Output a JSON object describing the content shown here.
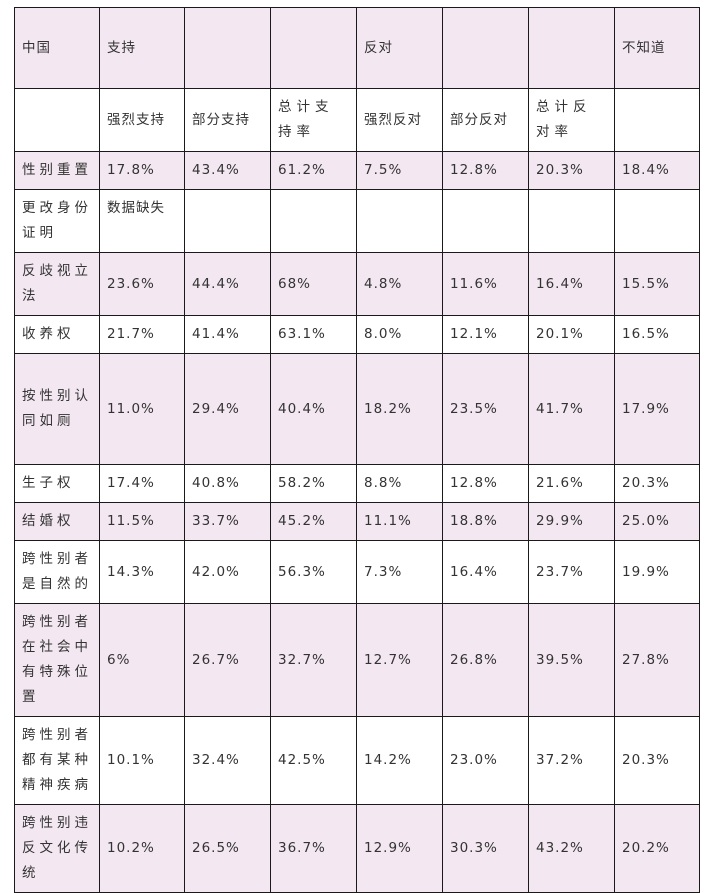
{
  "header1": [
    "中国",
    "支持",
    "",
    "",
    "反对",
    "",
    "",
    "不知道"
  ],
  "header2": [
    "",
    "强烈支持",
    "部分支持",
    "总计支持率",
    "强烈反对",
    "部分反对",
    "总计反对率",
    ""
  ],
  "rows": [
    [
      "性别重置",
      "17.8%",
      "43.4%",
      "61.2%",
      "7.5%",
      "12.8%",
      "20.3%",
      "18.4%"
    ],
    [
      "更改身份证明",
      "数据缺失",
      "",
      "",
      "",
      "",
      "",
      ""
    ],
    [
      "反歧视立法",
      "23.6%",
      "44.4%",
      "68%",
      "4.8%",
      "11.6%",
      "16.4%",
      "15.5%"
    ],
    [
      "收养权",
      "21.7%",
      "41.4%",
      "63.1%",
      "8.0%",
      "12.1%",
      "20.1%",
      "16.5%"
    ],
    [
      "按性别认同如厕",
      "11.0%",
      "29.4%",
      "40.4%",
      "18.2%",
      "23.5%",
      "41.7%",
      "17.9%"
    ],
    [
      "生子权",
      "17.4%",
      "40.8%",
      "58.2%",
      "8.8%",
      "12.8%",
      "21.6%",
      "20.3%"
    ],
    [
      "结婚权",
      "11.5%",
      "33.7%",
      "45.2%",
      "11.1%",
      "18.8%",
      "29.9%",
      "25.0%"
    ],
    [
      "跨性别者是自然的",
      "14.3%",
      "42.0%",
      "56.3%",
      "7.3%",
      "16.4%",
      "23.7%",
      "19.9%"
    ],
    [
      "跨性别者在社会中有特殊位置",
      "6%",
      "26.7%",
      "32.7%",
      "12.7%",
      "26.8%",
      "39.5%",
      "27.8%"
    ],
    [
      "跨性别者都有某种精神疾病",
      "10.1%",
      "32.4%",
      "42.5%",
      "14.2%",
      "23.0%",
      "37.2%",
      "20.3%"
    ],
    [
      "跨性别违反文化传统",
      "10.2%",
      "26.5%",
      "36.7%",
      "12.9%",
      "30.3%",
      "43.2%",
      "20.2%"
    ]
  ]
}
